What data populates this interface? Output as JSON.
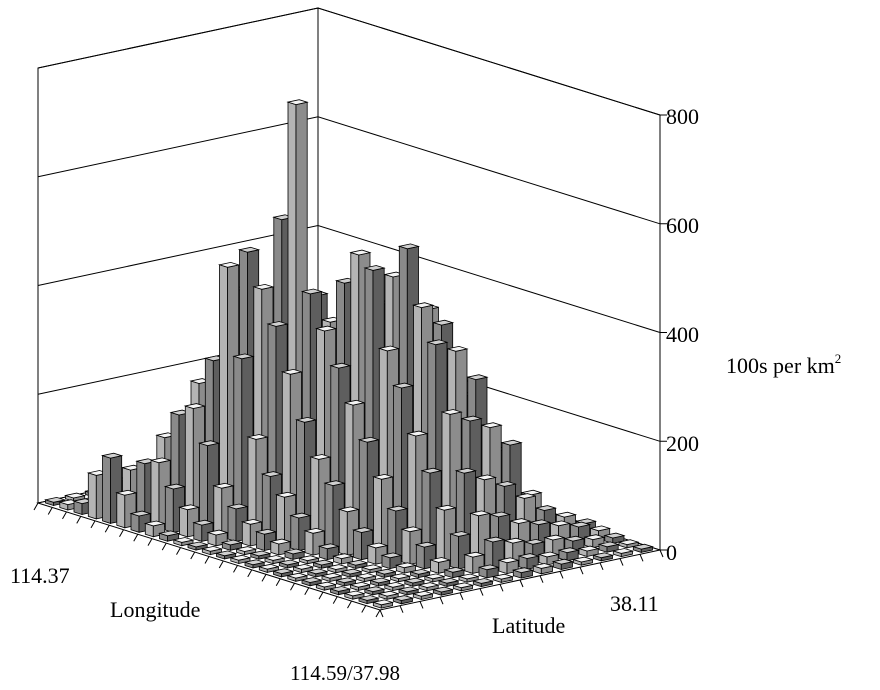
{
  "chart_data": {
    "type": "bar3d",
    "title": "",
    "zlabel": "100s per km",
    "zlabel_superscript": "2",
    "xlabel": "Longitude",
    "ylabel": "Latitude",
    "x_tick_start": "114.37",
    "y_tick_end": "38.11",
    "corner_label": "114.59/37.98",
    "zlim": [
      0,
      800
    ],
    "z_ticks": [
      "0",
      "200",
      "400",
      "600",
      "800"
    ],
    "grid": true,
    "grid_size": [
      24,
      14
    ],
    "values": [
      [
        0,
        0,
        0,
        0,
        0,
        0,
        0,
        0,
        0,
        0,
        0,
        0,
        0,
        0
      ],
      [
        10,
        5,
        0,
        0,
        0,
        0,
        0,
        0,
        0,
        0,
        0,
        0,
        0,
        0
      ],
      [
        20,
        15,
        10,
        0,
        0,
        0,
        0,
        0,
        0,
        0,
        0,
        0,
        0,
        0
      ],
      [
        80,
        60,
        25,
        10,
        5,
        0,
        0,
        0,
        0,
        0,
        0,
        0,
        0,
        0
      ],
      [
        120,
        90,
        40,
        20,
        10,
        0,
        0,
        0,
        0,
        0,
        0,
        0,
        0,
        0
      ],
      [
        60,
        110,
        150,
        40,
        20,
        10,
        0,
        0,
        0,
        0,
        0,
        0,
        0,
        0
      ],
      [
        30,
        120,
        200,
        250,
        90,
        40,
        10,
        0,
        0,
        0,
        0,
        0,
        0,
        0
      ],
      [
        20,
        80,
        220,
        300,
        420,
        120,
        60,
        20,
        0,
        0,
        0,
        0,
        0,
        0
      ],
      [
        10,
        50,
        160,
        480,
        500,
        300,
        140,
        40,
        10,
        0,
        0,
        0,
        0,
        0
      ],
      [
        5,
        30,
        90,
        320,
        440,
        560,
        260,
        90,
        30,
        10,
        0,
        0,
        0,
        0
      ],
      [
        0,
        20,
        60,
        180,
        380,
        780,
        420,
        160,
        60,
        20,
        0,
        0,
        0,
        0
      ],
      [
        0,
        10,
        40,
        120,
        300,
        440,
        380,
        260,
        90,
        30,
        10,
        0,
        0,
        0
      ],
      [
        0,
        5,
        30,
        90,
        220,
        380,
        460,
        300,
        140,
        50,
        20,
        0,
        0,
        0
      ],
      [
        0,
        0,
        20,
        60,
        160,
        320,
        520,
        420,
        200,
        90,
        30,
        10,
        0,
        0
      ],
      [
        0,
        0,
        10,
        40,
        120,
        260,
        500,
        480,
        300,
        140,
        50,
        20,
        0,
        0
      ],
      [
        0,
        0,
        5,
        20,
        80,
        200,
        360,
        540,
        420,
        200,
        90,
        30,
        10,
        0
      ],
      [
        0,
        0,
        0,
        10,
        50,
        140,
        300,
        440,
        400,
        260,
        120,
        40,
        20,
        0
      ],
      [
        0,
        0,
        0,
        5,
        30,
        90,
        220,
        380,
        360,
        300,
        160,
        60,
        20,
        10
      ],
      [
        0,
        0,
        0,
        0,
        20,
        60,
        160,
        260,
        240,
        220,
        180,
        80,
        30,
        10
      ],
      [
        0,
        0,
        0,
        0,
        10,
        40,
        100,
        160,
        140,
        120,
        90,
        60,
        40,
        20
      ],
      [
        0,
        0,
        0,
        0,
        5,
        20,
        60,
        90,
        80,
        60,
        50,
        40,
        30,
        15
      ],
      [
        0,
        0,
        0,
        0,
        0,
        10,
        30,
        50,
        40,
        30,
        30,
        20,
        15,
        10
      ],
      [
        0,
        0,
        0,
        0,
        0,
        5,
        15,
        20,
        20,
        15,
        15,
        10,
        10,
        5
      ],
      [
        0,
        0,
        0,
        0,
        0,
        0,
        5,
        10,
        10,
        10,
        5,
        5,
        5,
        0
      ]
    ]
  }
}
